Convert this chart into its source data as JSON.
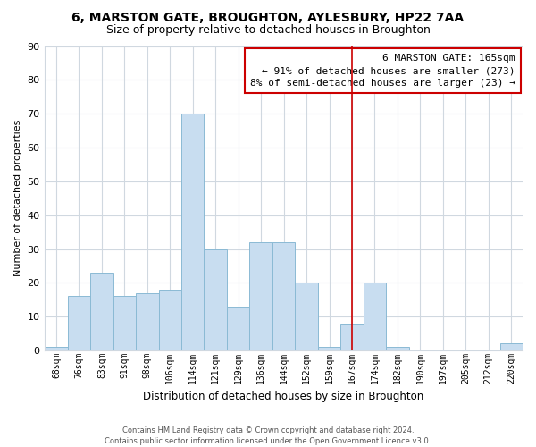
{
  "title": "6, MARSTON GATE, BROUGHTON, AYLESBURY, HP22 7AA",
  "subtitle": "Size of property relative to detached houses in Broughton",
  "xlabel": "Distribution of detached houses by size in Broughton",
  "ylabel": "Number of detached properties",
  "bar_labels": [
    "68sqm",
    "76sqm",
    "83sqm",
    "91sqm",
    "98sqm",
    "106sqm",
    "114sqm",
    "121sqm",
    "129sqm",
    "136sqm",
    "144sqm",
    "152sqm",
    "159sqm",
    "167sqm",
    "174sqm",
    "182sqm",
    "190sqm",
    "197sqm",
    "205sqm",
    "212sqm",
    "220sqm"
  ],
  "bar_values": [
    1,
    16,
    23,
    16,
    17,
    18,
    70,
    30,
    13,
    32,
    32,
    20,
    1,
    8,
    20,
    1,
    0,
    0,
    0,
    0,
    2
  ],
  "bar_color": "#c8ddf0",
  "bar_edge_color": "#8bbad4",
  "reference_line_x_label": "167sqm",
  "reference_line_color": "#cc0000",
  "annotation_title": "6 MARSTON GATE: 165sqm",
  "annotation_line1": "← 91% of detached houses are smaller (273)",
  "annotation_line2": "8% of semi-detached houses are larger (23) →",
  "annotation_box_color": "white",
  "annotation_box_edge_color": "#cc0000",
  "ylim": [
    0,
    90
  ],
  "yticks": [
    0,
    10,
    20,
    30,
    40,
    50,
    60,
    70,
    80,
    90
  ],
  "footer1": "Contains HM Land Registry data © Crown copyright and database right 2024.",
  "footer2": "Contains public sector information licensed under the Open Government Licence v3.0.",
  "background_color": "#ffffff",
  "grid_color": "#d0d8e0",
  "title_fontsize": 10,
  "subtitle_fontsize": 9,
  "annotation_fontsize": 8,
  "ylabel_fontsize": 8,
  "xlabel_fontsize": 8.5,
  "tick_fontsize": 7
}
